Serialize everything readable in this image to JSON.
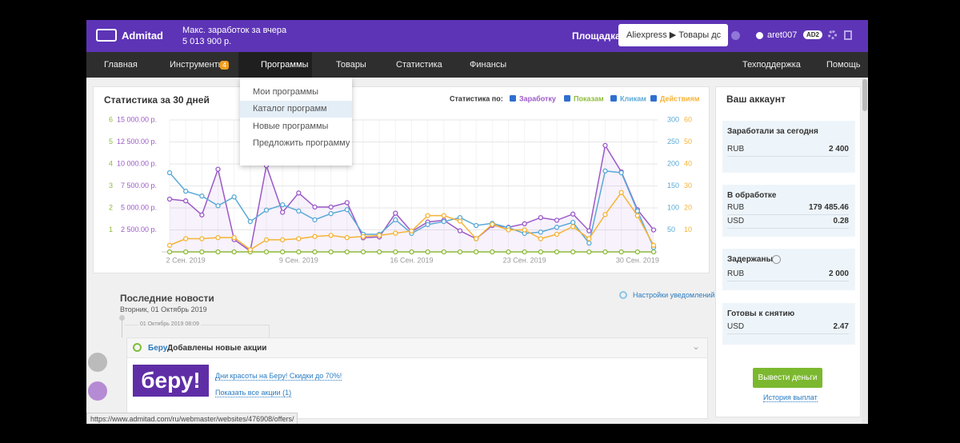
{
  "header": {
    "logo": "Admitad",
    "earnings_label": "Макс. заработок за вчера",
    "earnings_value": "5 013 900 р.",
    "site_label": "Площадка:",
    "site_select": "Aliexpress ▶ Товары дс",
    "username": "aret007",
    "badge": "AD2"
  },
  "nav": {
    "items": [
      "Главная",
      "Инструменты",
      "Программы",
      "Товары",
      "Статистика",
      "Финансы"
    ],
    "tools_badge": "4",
    "right": [
      "Техподдержка",
      "Помощь"
    ]
  },
  "dropdown": {
    "items": [
      "Мои программы",
      "Каталог программ",
      "Новые программы",
      "Предложить программу"
    ]
  },
  "chart_data": {
    "type": "line",
    "title": "Статистика за 30 дней",
    "legend_label": "Статистика по:",
    "categories": [
      null,
      "2 Сен. 2019",
      null,
      null,
      null,
      null,
      null,
      null,
      "9 Сен. 2019",
      null,
      null,
      null,
      null,
      null,
      null,
      "16 Сен. 2019",
      null,
      null,
      null,
      null,
      null,
      null,
      "23 Сен. 2019",
      null,
      null,
      null,
      null,
      null,
      null,
      "30 Сен. 2019",
      null
    ],
    "axes": [
      {
        "side": "left",
        "color": "#8dbb3a",
        "lim": [
          0,
          6
        ],
        "ticks": [
          1,
          2,
          3,
          4,
          5,
          6
        ]
      },
      {
        "side": "left",
        "color": "#9b59c8",
        "lim": [
          0,
          15000
        ],
        "ticks": [
          {
            "value": 2500,
            "label": "2 500.00 р."
          },
          {
            "value": 5000,
            "label": "5 000.00 р."
          },
          {
            "value": 7500,
            "label": "7 500.00 р."
          },
          {
            "value": 10000,
            "label": "10 000.00 р."
          },
          {
            "value": 12500,
            "label": "12 500.00 р."
          },
          {
            "value": 15000,
            "label": "15 000.00 р."
          }
        ]
      },
      {
        "side": "right",
        "color": "#5aa9d6",
        "lim": [
          0,
          300
        ],
        "ticks": [
          50,
          100,
          150,
          200,
          250,
          300
        ]
      },
      {
        "side": "right",
        "color": "#f5b335",
        "lim": [
          0,
          60
        ],
        "ticks": [
          10,
          20,
          30,
          40,
          50,
          60
        ]
      }
    ],
    "grid": true,
    "series": [
      {
        "name": "Заработку",
        "color": "#9b59c8",
        "axis": 1,
        "area": true,
        "values": [
          6000,
          5800,
          4200,
          9400,
          1400,
          100,
          9800,
          4500,
          6700,
          5100,
          5100,
          5600,
          1600,
          1700,
          4400,
          2300,
          3400,
          3600,
          2400,
          1500,
          3000,
          2800,
          3200,
          3900,
          3600,
          4300,
          2400,
          12100,
          9100,
          4800,
          2500
        ]
      },
      {
        "name": "Показам",
        "color": "#8dbb3a",
        "axis": 0,
        "area": false,
        "values": [
          0,
          0,
          0,
          0,
          0,
          0,
          0,
          0,
          0,
          0,
          0,
          0,
          0,
          0,
          0,
          0,
          0,
          0,
          0,
          0,
          0,
          0,
          0,
          0,
          0,
          0,
          0,
          0,
          0,
          0,
          0
        ]
      },
      {
        "name": "Кликам",
        "color": "#5aa9d6",
        "axis": 2,
        "area": false,
        "values": [
          180,
          138,
          127,
          105,
          125,
          69,
          95,
          107,
          93,
          73,
          87,
          96,
          40,
          40,
          73,
          42,
          62,
          69,
          78,
          60,
          65,
          55,
          42,
          45,
          56,
          67,
          20,
          184,
          180,
          93,
          10
        ]
      },
      {
        "name": "Действиям",
        "color": "#f5b335",
        "axis": 3,
        "area": false,
        "values": [
          3,
          6,
          6,
          6.5,
          6.5,
          1,
          5.5,
          5.5,
          6,
          7,
          7.5,
          6.5,
          7,
          7.5,
          8.5,
          9.5,
          16.5,
          16.5,
          14,
          6,
          12.5,
          10,
          10,
          6,
          8,
          11.5,
          6,
          17,
          27,
          16.5,
          3
        ]
      }
    ]
  },
  "news": {
    "title": "Последние новости",
    "date": "Вторник, 01 Октябрь 2019",
    "notify_settings": "Настройки уведомлений",
    "timestamp": "01 Октябрь 2019 08:09",
    "item": {
      "brand": "Беру",
      "headline": "Добавлены новые акции",
      "logo": "беру!",
      "link": "Дни красоты на Беру! Скидки до 70%!",
      "show_all": "Показать все акции (1)"
    }
  },
  "account": {
    "title": "Ваш аккаунт",
    "blocks": [
      {
        "title": "Заработали за сегодня",
        "rows": [
          [
            "RUB",
            "2 400"
          ]
        ]
      },
      {
        "title": "В обработке",
        "rows": [
          [
            "RUB",
            "179 485.46"
          ],
          [
            "USD",
            "0.28"
          ]
        ]
      },
      {
        "title": "Задержаны",
        "rows": [
          [
            "RUB",
            "2 000"
          ]
        ]
      },
      {
        "title": "Готовы к снятию",
        "rows": [
          [
            "USD",
            "2.47"
          ]
        ]
      }
    ],
    "withdraw": "Вывести деньги",
    "history": "История выплат"
  },
  "status_bar": "https://www.admitad.com/ru/webmaster/websites/476908/offers/"
}
